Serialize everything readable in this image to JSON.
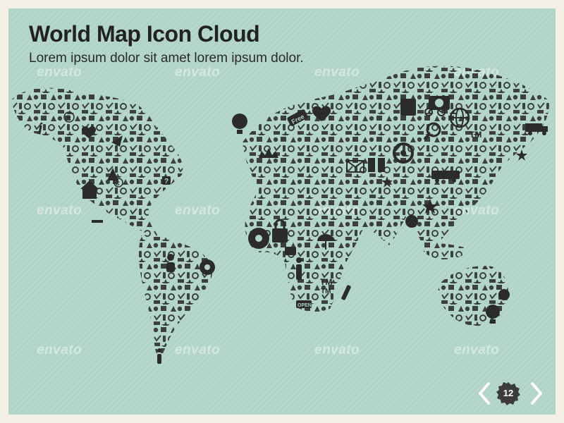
{
  "slide": {
    "title": "World Map Icon Cloud",
    "subtitle": "Lorem ipsum dolor sit amet lorem ipsum dolor.",
    "page_number": "12",
    "watermark": "envato",
    "background_color": "#b0d4c6",
    "icon_color": "#2b2b2b"
  },
  "map_labels": {
    "free": "Free",
    "open": "OPEN",
    "tm": "TM",
    "registered": "R",
    "copyright": "C",
    "question": "?",
    "info": "i"
  },
  "navigation": {
    "prev_icon": "chevron-left-icon",
    "next_icon": "chevron-right-icon"
  }
}
